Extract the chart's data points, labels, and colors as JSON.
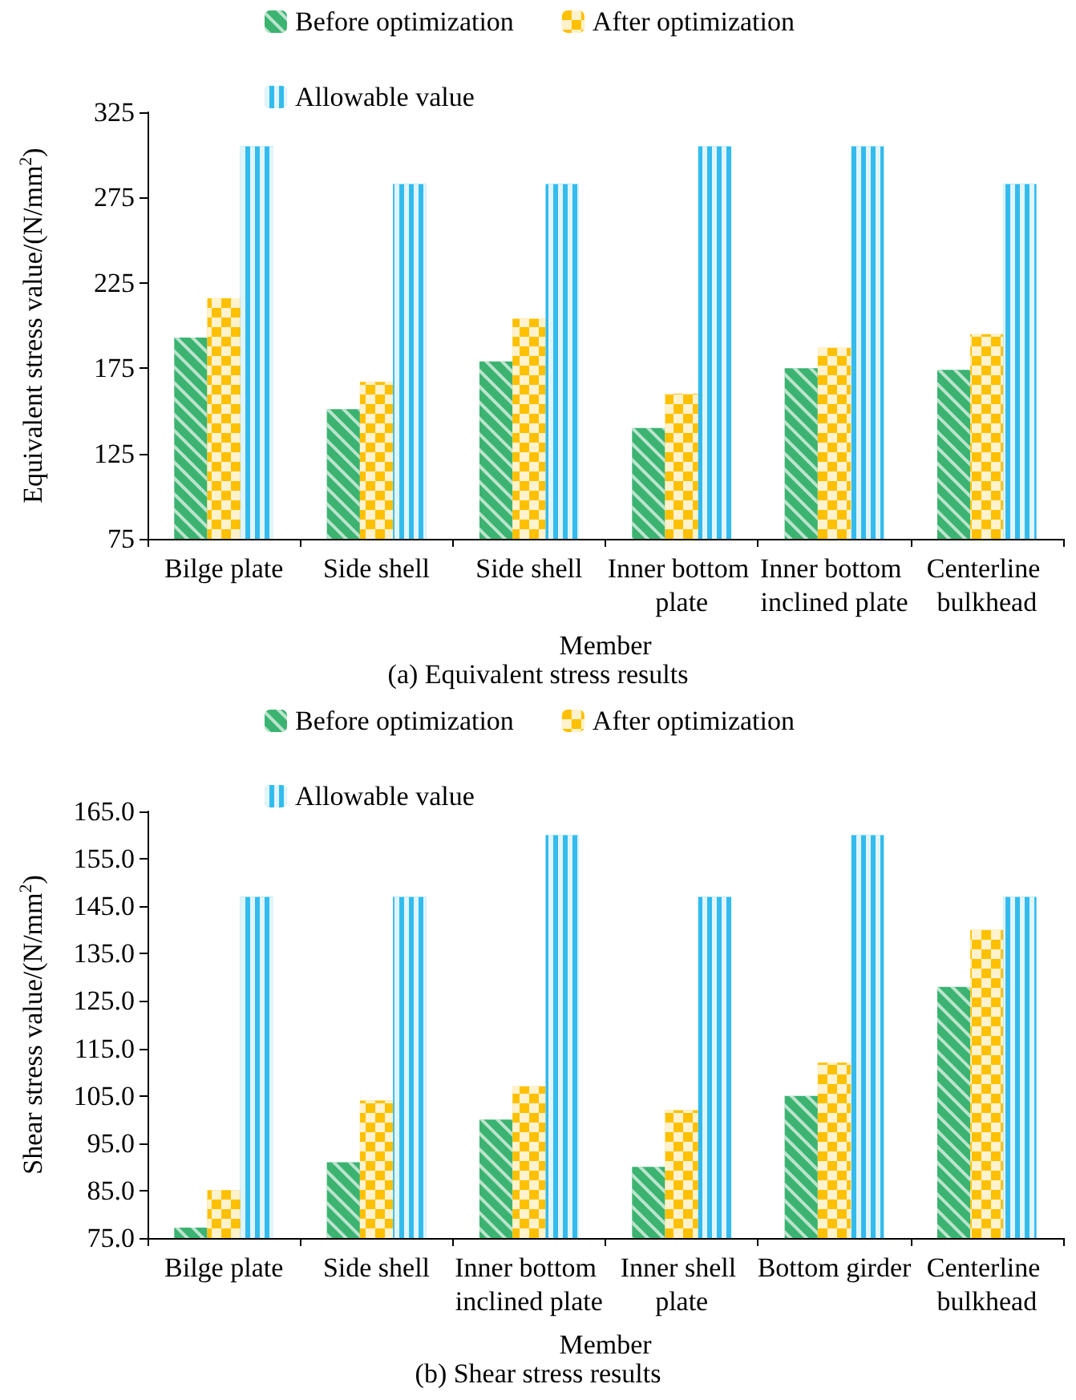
{
  "chart_data": [
    {
      "type": "bar",
      "title": "(a) Equivalent stress results",
      "xlabel": "Member",
      "ylabel": "Equivalent stress value/(N/mm$^{2}$)",
      "categories": [
        "Bilge plate",
        "Side shell",
        "Side shell",
        "Inner bottom plate",
        "Inner bottom inclined plate",
        "Centerline bulkhead"
      ],
      "series": [
        {
          "name": "Before optimization",
          "color": "#3cb371",
          "values": [
            193,
            151,
            179,
            140,
            175,
            174
          ]
        },
        {
          "name": "After optimization",
          "color": "#ffc000",
          "values": [
            216,
            167,
            204,
            160,
            187,
            195
          ]
        },
        {
          "name": "Allowable value",
          "color": "#33bbee",
          "values": [
            305,
            283,
            283,
            305,
            305,
            283
          ]
        }
      ],
      "ylim": [
        75,
        325
      ],
      "yticks": [
        75,
        125,
        175,
        225,
        275,
        325
      ],
      "grid": false,
      "legend": "top"
    },
    {
      "type": "bar",
      "title": "(b) Shear stress results",
      "xlabel": "Member",
      "ylabel": "Shear stress value/(N/mm$^{2}$)",
      "categories": [
        "Bilge plate",
        "Side shell",
        "Inner bottom inclined plate",
        "Inner shell plate",
        "Bottom girder",
        "Centerline bulkhead"
      ],
      "series": [
        {
          "name": "Before optimization",
          "color": "#3cb371",
          "values": [
            77.2,
            91,
            100,
            90,
            105,
            128
          ]
        },
        {
          "name": "After optimization",
          "color": "#ffc000",
          "values": [
            85.1,
            104,
            107,
            102,
            112,
            140
          ]
        },
        {
          "name": "Allowable value",
          "color": "#33bbee",
          "values": [
            147,
            147,
            160,
            147,
            160,
            147
          ]
        }
      ],
      "ylim": [
        75,
        165
      ],
      "yticks": [
        {
          "value": 75,
          "label": "75.0"
        },
        {
          "value": 85,
          "label": "85.0"
        },
        {
          "value": 95,
          "label": "95.0"
        },
        {
          "value": 105,
          "label": "105.0"
        },
        {
          "value": 115,
          "label": "115.0"
        },
        {
          "value": 125,
          "label": "125.0"
        },
        {
          "value": 135,
          "label": "135.0"
        },
        {
          "value": 145,
          "label": "145.0"
        },
        {
          "value": 155,
          "label": "155.0"
        },
        {
          "value": 165,
          "label": "165.0"
        }
      ],
      "grid": false,
      "legend": "top"
    }
  ]
}
